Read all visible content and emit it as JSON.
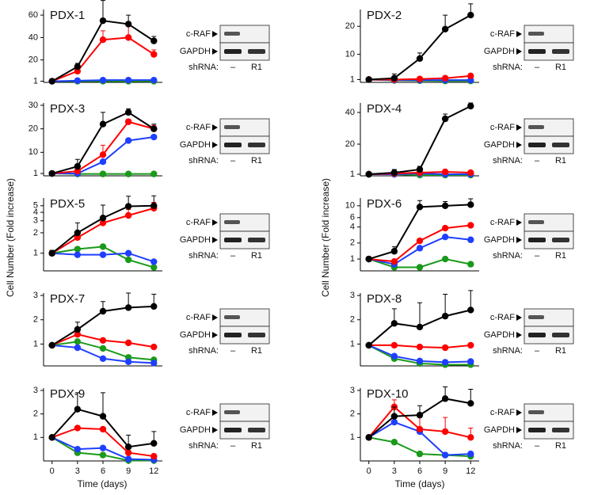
{
  "chart_data": [
    {
      "type": "line",
      "title": "PDX-1",
      "x": [
        0,
        3,
        6,
        9,
        12
      ],
      "xlim": [
        -1,
        13
      ],
      "ylim": [
        0,
        65
      ],
      "yticks": [
        1,
        20,
        40,
        60
      ],
      "series": [
        {
          "color": "#000000",
          "values": [
            1,
            14,
            55,
            52,
            37
          ],
          "errors": [
            0.5,
            3,
            18,
            8,
            4
          ]
        },
        {
          "color": "#ff0000",
          "values": [
            1,
            10,
            38,
            40,
            25
          ],
          "errors": [
            0.5,
            2,
            8,
            12,
            4
          ]
        },
        {
          "color": "#1f3fff",
          "values": [
            1,
            1.5,
            2,
            2,
            2
          ]
        },
        {
          "color": "#1a9a1a",
          "values": [
            1,
            1,
            1,
            1,
            1
          ]
        }
      ],
      "blot": {
        "bands": [
          "c-RAF",
          "GAPDH"
        ],
        "condition_label": "shRNA:",
        "lanes": [
          "–",
          "R1"
        ]
      }
    },
    {
      "type": "line",
      "title": "PDX-2",
      "x": [
        0,
        3,
        6,
        9,
        12
      ],
      "xlim": [
        -1,
        13
      ],
      "ylim": [
        0,
        26
      ],
      "yticks": [
        1,
        10,
        20
      ],
      "series": [
        {
          "color": "#000000",
          "values": [
            1,
            1.5,
            8.5,
            19,
            24
          ],
          "errors": [
            0.3,
            1.5,
            2,
            5,
            4
          ]
        },
        {
          "color": "#ff0000",
          "values": [
            1,
            1,
            1.2,
            1.5,
            2.3
          ]
        },
        {
          "color": "#1f3fff",
          "values": [
            1,
            0.8,
            0.8,
            0.8,
            0.8
          ]
        },
        {
          "color": "#1a9a1a",
          "values": [
            1,
            0.7,
            0.6,
            0.5,
            0.5
          ]
        }
      ],
      "blot": {
        "bands": [
          "c-RAF",
          "GAPDH"
        ],
        "condition_label": "shRNA:",
        "lanes": [
          "–",
          "R1"
        ]
      }
    },
    {
      "type": "line",
      "title": "PDX-3",
      "x": [
        0,
        3,
        6,
        9,
        12
      ],
      "xlim": [
        -1,
        13
      ],
      "ylim": [
        0,
        31
      ],
      "yticks": [
        1,
        10,
        20,
        30
      ],
      "series": [
        {
          "color": "#000000",
          "values": [
            1,
            4,
            22,
            27,
            20
          ],
          "errors": [
            0.3,
            3,
            5,
            1.5,
            2
          ]
        },
        {
          "color": "#ff0000",
          "values": [
            1,
            2,
            9,
            23,
            20
          ],
          "errors": [
            0.3,
            1,
            4,
            1,
            1.5
          ]
        },
        {
          "color": "#1f3fff",
          "values": [
            1,
            1,
            6,
            15,
            16.5
          ]
        },
        {
          "color": "#1a9a1a",
          "values": [
            1,
            0.8,
            0.8,
            0.8,
            0.8
          ]
        }
      ],
      "blot": {
        "bands": [
          "c-RAF",
          "GAPDH"
        ],
        "condition_label": "shRNA:",
        "lanes": [
          "–",
          "R1"
        ]
      }
    },
    {
      "type": "line",
      "title": "PDX-4",
      "x": [
        0,
        3,
        6,
        9,
        12
      ],
      "xlim": [
        -1,
        13
      ],
      "ylim": [
        0,
        46
      ],
      "yticks": [
        1,
        20,
        40
      ],
      "series": [
        {
          "color": "#000000",
          "values": [
            1,
            2,
            4,
            36,
            44
          ],
          "errors": [
            0.5,
            2,
            2,
            3,
            2
          ]
        },
        {
          "color": "#ff0000",
          "values": [
            1,
            1.5,
            2,
            2.5,
            2
          ]
        },
        {
          "color": "#1f3fff",
          "values": [
            1,
            1,
            1.5,
            1,
            1
          ]
        },
        {
          "color": "#1a9a1a",
          "values": [
            1,
            1,
            0.5,
            0.5,
            0.5
          ]
        }
      ],
      "blot": {
        "bands": [
          "c-RAF",
          "GAPDH"
        ],
        "condition_label": "shRNA:",
        "lanes": [
          "–",
          "R1"
        ]
      }
    },
    {
      "type": "line",
      "title": "PDX-5",
      "x": [
        0,
        3,
        6,
        9,
        12
      ],
      "xlim": [
        -1,
        13
      ],
      "ylim": [
        0.55,
        6.5
      ],
      "yticks": [
        1,
        2,
        3,
        4,
        5
      ],
      "log_scale": true,
      "series": [
        {
          "color": "#000000",
          "values": [
            1,
            2,
            3.3,
            4.9,
            5
          ],
          "errors": [
            0.1,
            0.8,
            1.8,
            2,
            2
          ]
        },
        {
          "color": "#ff0000",
          "values": [
            1,
            1.7,
            2.8,
            3.6,
            4.6
          ],
          "errors": [
            0.1,
            0.4,
            0.7,
            0.8,
            1
          ]
        },
        {
          "color": "#1f3fff",
          "values": [
            1,
            0.95,
            0.95,
            1,
            0.75
          ]
        },
        {
          "color": "#1a9a1a",
          "values": [
            1,
            1.15,
            1.25,
            0.8,
            0.62
          ]
        }
      ],
      "blot": {
        "bands": [
          "c-RAF",
          "GAPDH"
        ],
        "condition_label": "shRNA:",
        "lanes": [
          "–",
          "R1"
        ]
      }
    },
    {
      "type": "line",
      "title": "PDX-6",
      "x": [
        0,
        3,
        6,
        9,
        12
      ],
      "xlim": [
        -1,
        13
      ],
      "ylim": [
        0.6,
        14
      ],
      "yticks": [
        1,
        2,
        4,
        6,
        10
      ],
      "log_scale": true,
      "series": [
        {
          "color": "#000000",
          "values": [
            1,
            1.4,
            9.5,
            10,
            10.5
          ],
          "errors": [
            0.1,
            0.3,
            3,
            2,
            3
          ]
        },
        {
          "color": "#ff0000",
          "values": [
            1,
            0.9,
            2.2,
            3.8,
            4.3
          ]
        },
        {
          "color": "#1f3fff",
          "values": [
            1,
            0.8,
            1.6,
            2.6,
            2.3
          ]
        },
        {
          "color": "#1a9a1a",
          "values": [
            1,
            0.7,
            0.7,
            1,
            0.8
          ]
        }
      ],
      "blot": {
        "bands": [
          "c-RAF",
          "GAPDH"
        ],
        "condition_label": "shRNA:",
        "lanes": [
          "–",
          "R1"
        ]
      }
    },
    {
      "type": "line",
      "title": "PDX-7",
      "x": [
        0,
        3,
        6,
        9,
        12
      ],
      "xlim": [
        -1,
        13
      ],
      "ylim": [
        0.1,
        3.1
      ],
      "yticks": [
        1,
        2,
        3
      ],
      "series": [
        {
          "color": "#000000",
          "values": [
            0.95,
            1.6,
            2.35,
            2.5,
            2.55
          ],
          "errors": [
            0.05,
            0.3,
            0.4,
            0.6,
            0.5
          ]
        },
        {
          "color": "#ff0000",
          "values": [
            0.95,
            1.4,
            1.15,
            1.05,
            0.88
          ]
        },
        {
          "color": "#1f3fff",
          "values": [
            0.95,
            0.85,
            0.4,
            0.27,
            0.22
          ]
        },
        {
          "color": "#1a9a1a",
          "values": [
            0.95,
            1.1,
            0.82,
            0.45,
            0.35
          ]
        }
      ],
      "blot": {
        "bands": [
          "c-RAF",
          "GAPDH"
        ],
        "condition_label": "shRNA:",
        "lanes": [
          "–",
          "R1"
        ]
      }
    },
    {
      "type": "line",
      "title": "PDX-8",
      "x": [
        0,
        3,
        6,
        9,
        12
      ],
      "xlim": [
        -1,
        13
      ],
      "ylim": [
        0.1,
        3.1
      ],
      "yticks": [
        1,
        2,
        3
      ],
      "series": [
        {
          "color": "#000000",
          "values": [
            0.95,
            1.85,
            1.7,
            2.15,
            2.4
          ],
          "errors": [
            0.05,
            0.6,
            1,
            0.9,
            0.8
          ]
        },
        {
          "color": "#ff0000",
          "values": [
            0.95,
            0.95,
            0.88,
            0.85,
            0.95
          ]
        },
        {
          "color": "#1f3fff",
          "values": [
            0.95,
            0.5,
            0.3,
            0.25,
            0.28
          ]
        },
        {
          "color": "#1a9a1a",
          "values": [
            0.95,
            0.4,
            0.2,
            0.15,
            0.15
          ]
        }
      ],
      "blot": {
        "bands": [
          "c-RAF",
          "GAPDH"
        ],
        "condition_label": "shRNA:",
        "lanes": [
          "–",
          "R1"
        ]
      }
    },
    {
      "type": "line",
      "title": "PDX-9",
      "x": [
        0,
        3,
        6,
        9,
        12
      ],
      "xlim": [
        -1,
        13
      ],
      "xticks": [
        0,
        3,
        6,
        9,
        12
      ],
      "ylim": [
        0,
        3.1
      ],
      "yticks": [
        1,
        2,
        3
      ],
      "series": [
        {
          "color": "#000000",
          "values": [
            1,
            2.2,
            1.9,
            0.6,
            0.75
          ],
          "errors": [
            0.05,
            0.7,
            1,
            0.5,
            0.5
          ]
        },
        {
          "color": "#ff0000",
          "values": [
            1,
            1.4,
            1.35,
            0.35,
            0.2
          ]
        },
        {
          "color": "#1f3fff",
          "values": [
            1,
            0.5,
            0.55,
            0.08,
            0.05
          ]
        },
        {
          "color": "#1a9a1a",
          "values": [
            1,
            0.35,
            0.25,
            0.02,
            0.02
          ]
        }
      ],
      "blot": {
        "bands": [
          "c-RAF",
          "GAPDH"
        ],
        "condition_label": "shRNA:",
        "lanes": [
          "–",
          "R1"
        ]
      }
    },
    {
      "type": "line",
      "title": "PDX-10",
      "x": [
        0,
        3,
        6,
        9,
        12
      ],
      "xlim": [
        -1,
        13
      ],
      "xticks": [
        0,
        3,
        6,
        9,
        12
      ],
      "ylim": [
        0,
        3.1
      ],
      "yticks": [
        1,
        2,
        3
      ],
      "series": [
        {
          "color": "#000000",
          "values": [
            1,
            1.9,
            1.95,
            2.65,
            2.45
          ],
          "errors": [
            0.1,
            0.4,
            0.4,
            0.5,
            0.6
          ]
        },
        {
          "color": "#ff0000",
          "values": [
            1,
            2.3,
            1.35,
            1.25,
            1
          ],
          "errors": [
            0.1,
            0.3,
            0.5,
            0.6,
            0.4
          ]
        },
        {
          "color": "#1f3fff",
          "values": [
            1,
            1.65,
            1.25,
            0.25,
            0.3
          ]
        },
        {
          "color": "#1a9a1a",
          "values": [
            1,
            0.8,
            0.3,
            0.25,
            0.2
          ]
        }
      ],
      "blot": {
        "bands": [
          "c-RAF",
          "GAPDH"
        ],
        "condition_label": "shRNA:",
        "lanes": [
          "–",
          "R1"
        ]
      }
    }
  ],
  "columns": [
    {
      "ylabel": "Cell Number (Fold increase)",
      "xlabel": "Time (days)"
    },
    {
      "ylabel": "Cell Number (Fold increase)",
      "xlabel": "Time (days)"
    }
  ]
}
